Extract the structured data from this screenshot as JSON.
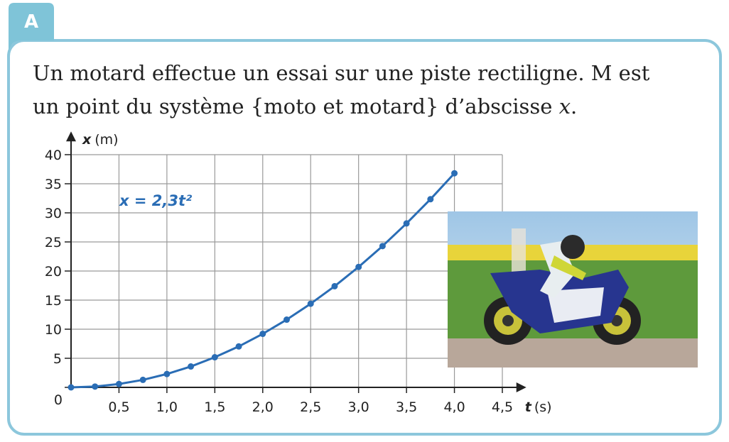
{
  "tab": "A",
  "paragraph": {
    "line1": "Un motard effectue un essai sur une piste rectiligne. M est",
    "line2": "un point du système {moto et motard} d’abscisse ",
    "variable": "x",
    "end": "."
  },
  "chart_data": {
    "type": "line",
    "ylabel": {
      "symbol": "x",
      "unit": "(m)"
    },
    "xlabel": {
      "symbol": "t",
      "unit": "(s)"
    },
    "annotation": "x = 2,3t²",
    "x": [
      0,
      0.25,
      0.5,
      0.75,
      1,
      1.25,
      1.5,
      1.75,
      2,
      2.25,
      2.5,
      2.75,
      3,
      3.25,
      3.5,
      3.75,
      4
    ],
    "values": [
      0,
      0.14,
      0.58,
      1.29,
      2.3,
      3.59,
      5.18,
      7.04,
      9.2,
      11.64,
      14.38,
      17.39,
      20.7,
      24.29,
      28.18,
      32.34,
      36.8
    ],
    "color": "#2a6db5",
    "xlim": [
      0,
      4.75
    ],
    "ylim": [
      0,
      44
    ],
    "xticks": [
      {
        "value": 0.5,
        "label": "0,5"
      },
      {
        "value": 1,
        "label": "1,0"
      },
      {
        "value": 1.5,
        "label": "1,5"
      },
      {
        "value": 2,
        "label": "2,0"
      },
      {
        "value": 2.5,
        "label": "2,5"
      },
      {
        "value": 3,
        "label": "3,0"
      },
      {
        "value": 3.5,
        "label": "3,5"
      },
      {
        "value": 4,
        "label": "4,0"
      },
      {
        "value": 4.5,
        "label": "4,5"
      }
    ],
    "yticks": [
      0,
      5,
      10,
      15,
      20,
      25,
      30,
      35,
      40
    ],
    "grid": true
  }
}
